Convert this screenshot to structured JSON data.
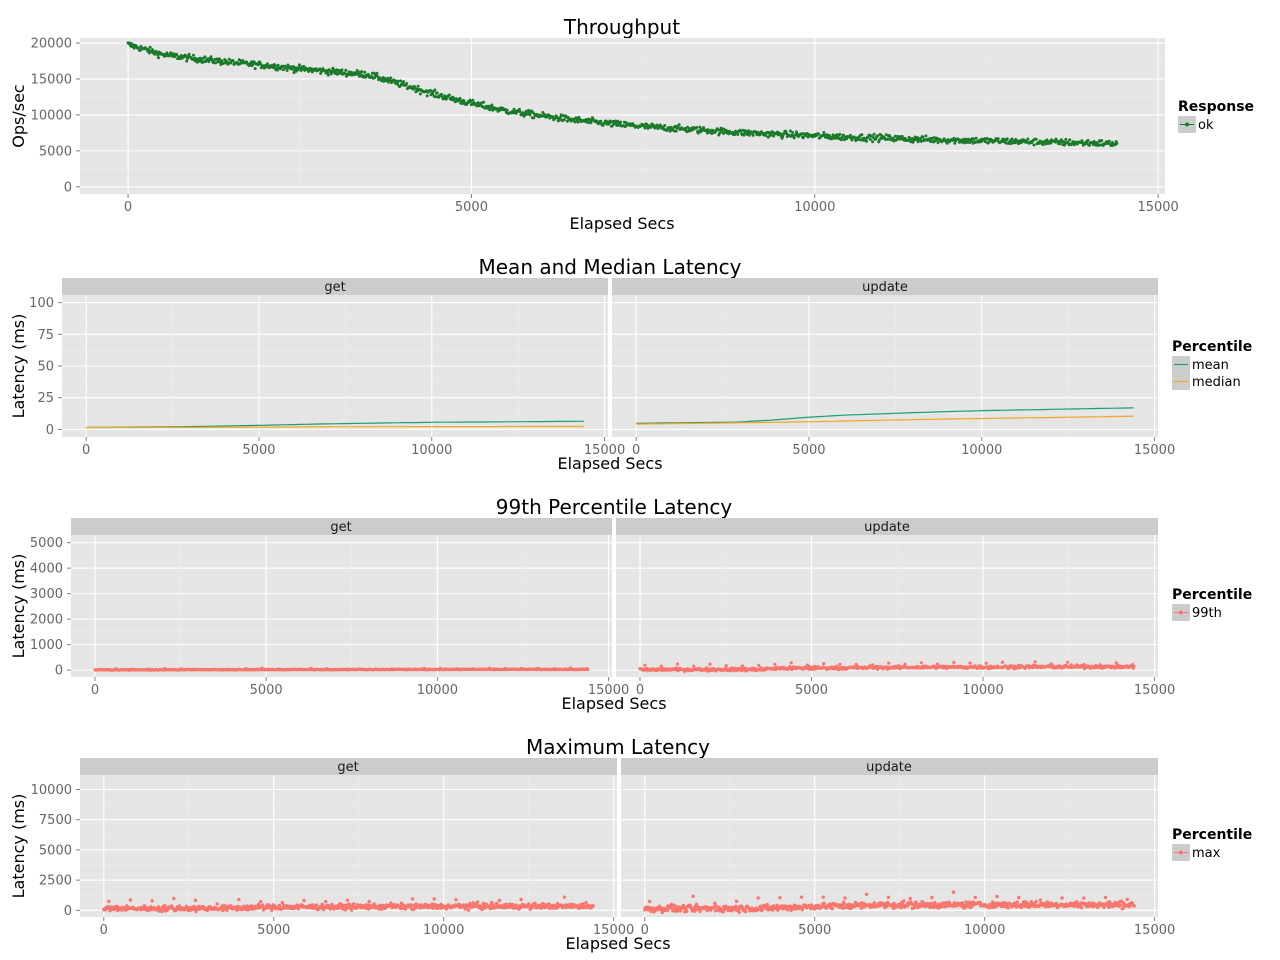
{
  "chart_data": [
    {
      "type": "scatter",
      "title": "Throughput",
      "xlabel": "Elapsed Secs",
      "ylabel": "Ops/sec",
      "xlim": [
        -700,
        15100
      ],
      "ylim": [
        -1000,
        20700
      ],
      "x_ticks": [
        0,
        5000,
        10000,
        15000
      ],
      "y_ticks": [
        0,
        5000,
        10000,
        15000,
        20000
      ],
      "grid": true,
      "legend": {
        "title": "Response",
        "position": "right",
        "entries": [
          {
            "label": "ok",
            "color": "#1a7a2a"
          }
        ]
      },
      "series": [
        {
          "name": "ok",
          "color": "#1a7a2a",
          "x": [
            0,
            500,
            1000,
            1500,
            2000,
            2500,
            3000,
            3500,
            4000,
            4500,
            5000,
            5500,
            6000,
            6500,
            7000,
            7500,
            8000,
            8500,
            9000,
            9500,
            10000,
            10500,
            11000,
            11500,
            12000,
            12500,
            13000,
            13500,
            14000,
            14400
          ],
          "y": [
            19800,
            18400,
            17800,
            17300,
            16900,
            16400,
            16000,
            15600,
            14200,
            12800,
            11600,
            10600,
            9900,
            9300,
            8800,
            8400,
            8100,
            7800,
            7500,
            7300,
            7100,
            6900,
            6800,
            6600,
            6500,
            6400,
            6300,
            6200,
            6100,
            6000
          ],
          "noise": 450
        }
      ]
    },
    {
      "type": "line",
      "title": "Mean and Median Latency",
      "xlabel": "Elapsed Secs",
      "ylabel": "Latency (ms)",
      "ylim": [
        -6,
        106
      ],
      "x_ticks": [
        0,
        5000,
        10000,
        15000
      ],
      "y_ticks": [
        0,
        25,
        50,
        75,
        100
      ],
      "grid": true,
      "legend": {
        "title": "Percentile",
        "position": "right",
        "entries": [
          {
            "label": "mean",
            "color": "#1b9e77"
          },
          {
            "label": "median",
            "color": "#f5a623"
          }
        ]
      },
      "panels": [
        {
          "strip": "get",
          "series": [
            {
              "name": "mean",
              "color": "#1b9e77",
              "x": [
                0,
                3000,
                5000,
                7000,
                10000,
                14400
              ],
              "y": [
                1.5,
                2.2,
                3.2,
                4.4,
                5.6,
                6.4
              ]
            },
            {
              "name": "median",
              "color": "#f5a623",
              "x": [
                0,
                3000,
                5000,
                7000,
                10000,
                14400
              ],
              "y": [
                1.4,
                1.6,
                1.8,
                2.0,
                2.2,
                2.3
              ]
            }
          ]
        },
        {
          "strip": "update",
          "series": [
            {
              "name": "mean",
              "color": "#1b9e77",
              "x": [
                0,
                3000,
                4000,
                5000,
                6000,
                8000,
                10000,
                12000,
                14400
              ],
              "y": [
                4.8,
                5.8,
                7.5,
                9.6,
                11.2,
                13.2,
                14.8,
                15.8,
                17.0
              ]
            },
            {
              "name": "median",
              "color": "#f5a623",
              "x": [
                0,
                3000,
                5000,
                7000,
                10000,
                12000,
                14400
              ],
              "y": [
                4.2,
                5.2,
                6.0,
                7.2,
                8.6,
                9.4,
                10.4
              ]
            }
          ]
        }
      ]
    },
    {
      "type": "scatter",
      "title": "99th Percentile Latency",
      "xlabel": "Elapsed Secs",
      "ylabel": "Latency (ms)",
      "ylim": [
        -270,
        5300
      ],
      "x_ticks": [
        0,
        5000,
        10000,
        15000
      ],
      "y_ticks": [
        0,
        1000,
        2000,
        3000,
        4000,
        5000
      ],
      "grid": true,
      "legend": {
        "title": "Percentile",
        "position": "right",
        "entries": [
          {
            "label": "99th",
            "color": "#f8766d"
          }
        ]
      },
      "panels": [
        {
          "strip": "get",
          "series": [
            {
              "name": "99th",
              "color": "#f8766d",
              "x": [
                0,
                5000,
                10000,
                14400
              ],
              "y": [
                10,
                20,
                28,
                30
              ],
              "noise": 14
            }
          ]
        },
        {
          "strip": "update",
          "series": [
            {
              "name": "99th",
              "color": "#f8766d",
              "x": [
                0,
                3500,
                4000,
                6000,
                8000,
                10000,
                12000,
                14400
              ],
              "y": [
                20,
                30,
                70,
                90,
                110,
                120,
                130,
                130
              ],
              "noise": 60
            }
          ]
        }
      ]
    },
    {
      "type": "scatter",
      "title": "Maximum Latency",
      "xlabel": "Elapsed Secs",
      "ylabel": "Latency (ms)",
      "ylim": [
        -550,
        11200
      ],
      "x_ticks": [
        0,
        5000,
        10000,
        15000
      ],
      "y_ticks": [
        0,
        2500,
        5000,
        7500,
        10000
      ],
      "grid": true,
      "legend": {
        "title": "Percentile",
        "position": "right",
        "entries": [
          {
            "label": "max",
            "color": "#f8766d"
          }
        ]
      },
      "panels": [
        {
          "strip": "get",
          "series": [
            {
              "name": "max",
              "color": "#f8766d",
              "x": [
                0,
                3500,
                5000,
                8000,
                11000,
                14400
              ],
              "y": [
                150,
                170,
                260,
                310,
                330,
                340
              ],
              "noise": 220
            }
          ]
        },
        {
          "strip": "update",
          "series": [
            {
              "name": "max",
              "color": "#f8766d",
              "x": [
                0,
                3500,
                5000,
                7000,
                10000,
                14400
              ],
              "y": [
                140,
                170,
                330,
                450,
                460,
                470
              ],
              "noise": 260
            }
          ]
        }
      ]
    }
  ]
}
